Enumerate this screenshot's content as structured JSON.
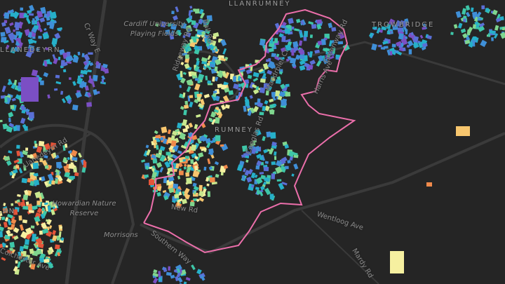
{
  "map": {
    "places": [
      "LLANRUMNEY",
      "TROWBRIDGE",
      "LLANEDEYRN",
      "RUMNEY",
      "PENYLAN"
    ],
    "pois": [
      "Cardiff University Playing Fields",
      "Howardian Nature Reserve",
      "Morrisons"
    ],
    "roads": [
      "Cr Way E",
      "Ball Rd",
      "Ridgeway Rd",
      "Mandrbler Cr",
      "Greenway Rd",
      "Harris Ave",
      "Caeglas Rd",
      "New Rd",
      "Southern Way",
      "Wentloog Ave",
      "Mardy Rd",
      "Llanedeyrn Rd",
      "Colchester Ave"
    ],
    "colors": {
      "background": "#252525",
      "roads": "#3a3a3a",
      "boundary": "#ec6fab",
      "building_palette": [
        "#7b4fc4",
        "#5a6fd6",
        "#3f8fd8",
        "#26b0c9",
        "#3ec6a8",
        "#7fd68e",
        "#c9e88e",
        "#f6f0a0",
        "#f7c66e",
        "#f08a4b",
        "#e5553a"
      ]
    },
    "legend_scale": "building color ramp (purple → blue → teal → yellow → orange)"
  }
}
